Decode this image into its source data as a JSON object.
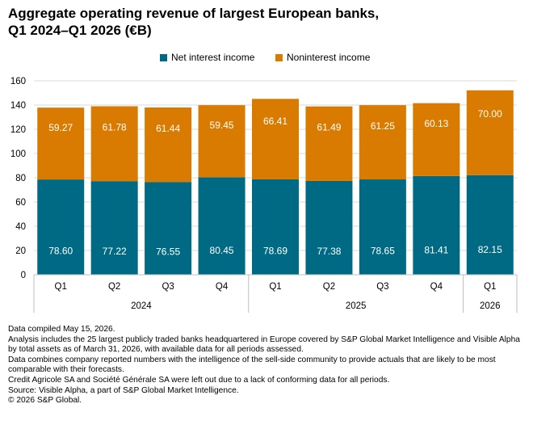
{
  "title_lines": [
    "Aggregate operating revenue of largest European banks,",
    "Q1 2024–Q1 2026 (€B)"
  ],
  "colors": {
    "net_interest": "#006a84",
    "noninterest": "#d97b00",
    "grid": "#d9d9d9",
    "axis_text": "#000000"
  },
  "chart_data": {
    "type": "bar",
    "stacked": true,
    "categories": [
      "Q1",
      "Q2",
      "Q3",
      "Q4",
      "Q1",
      "Q2",
      "Q3",
      "Q4",
      "Q1"
    ],
    "groups": [
      {
        "label": "2024",
        "span": 4
      },
      {
        "label": "2025",
        "span": 4
      },
      {
        "label": "2026",
        "span": 1
      }
    ],
    "series": [
      {
        "name": "Net interest income",
        "values": [
          78.6,
          77.22,
          76.55,
          80.45,
          78.69,
          77.38,
          78.65,
          81.41,
          82.15
        ]
      },
      {
        "name": "Noninterest income",
        "values": [
          59.27,
          61.78,
          61.44,
          59.45,
          66.41,
          61.49,
          61.25,
          60.13,
          70.0
        ]
      }
    ],
    "value_labels": [
      [
        "78.60",
        "77.22",
        "76.55",
        "80.45",
        "78.69",
        "77.38",
        "78.65",
        "81.41",
        "82.15"
      ],
      [
        "59.27",
        "61.78",
        "61.44",
        "59.45",
        "66.41",
        "61.49",
        "61.25",
        "60.13",
        "70.00"
      ]
    ],
    "ylim": [
      0,
      160
    ],
    "yticks": [
      "0",
      "20",
      "40",
      "60",
      "80",
      "100",
      "120",
      "140",
      "160"
    ],
    "grid": true,
    "legend": "top-center"
  },
  "notes": [
    "Data compiled May 15, 2026.",
    "Analysis includes the 25 largest publicly traded banks headquartered in Europe covered by S&P Global Market Intelligence and Visible Alpha by total assets as of March 31, 2026, with available data for all periods assessed.",
    "Data combines company reported numbers with the intelligence of the sell-side community to provide actuals that are likely to be most comparable with their forecasts.",
    "Credit Agricole SA and Société Générale SA were left out due to a lack of conforming data for all periods.",
    "Source: Visible Alpha, a part of S&P Global Market Intelligence.",
    "© 2026 S&P Global."
  ]
}
